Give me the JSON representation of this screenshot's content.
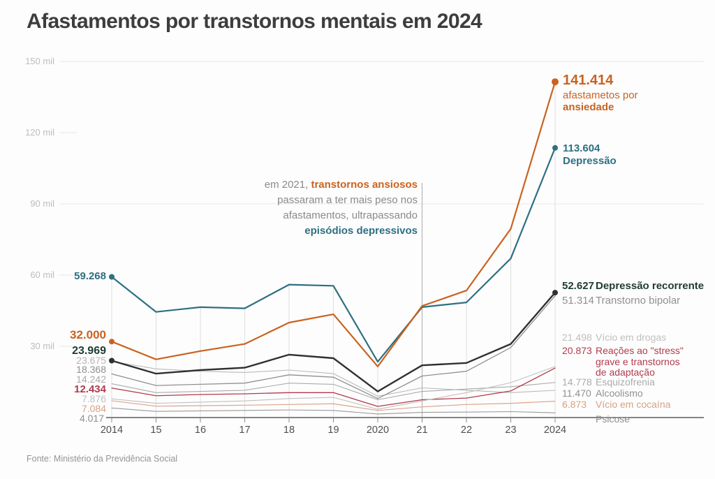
{
  "title": "Afastamentos por transtornos mentais em 2024",
  "source": "Fonte: Ministério da Previdência Social",
  "annotation": {
    "line1_prefix": "em 2021, ",
    "line1_highlight": "transtornos ansiosos",
    "line2": "passaram a ter mais peso nos",
    "line3": "afastamentos, ultrapassando",
    "line4_highlight": "episódios depressivos"
  },
  "colors": {
    "orange": "#ca6220",
    "teal": "#2e6f82",
    "dark": "#1e3b34",
    "red": "#b23a4c",
    "salmon": "#d9a183",
    "title_gray": "#3d3d3d"
  },
  "chart_data": {
    "type": "line",
    "x": [
      2014,
      2015,
      2016,
      2017,
      2018,
      2019,
      2020,
      2021,
      2022,
      2023,
      2024
    ],
    "x_tick_labels": [
      "2014",
      "15",
      "16",
      "17",
      "18",
      "19",
      "2020",
      "21",
      "22",
      "23",
      "2024"
    ],
    "y_ticks": [
      {
        "label": "150 mil",
        "value": 150000
      },
      {
        "label": "120 mil",
        "value": 120000
      },
      {
        "label": "90 mil",
        "value": 90000
      },
      {
        "label": "60 mil",
        "value": 60000
      },
      {
        "label": "30 mil",
        "value": 30000
      },
      {
        "label": "0",
        "value": 0
      }
    ],
    "ylim": [
      0,
      150000
    ],
    "grid": "partial-horizontal-plus-year-droplines",
    "legend_position": "direct-labels-left-and-right",
    "series": [
      {
        "id": "ansiedade",
        "name": "Ansiedade",
        "color": "#ca6220",
        "line_width": 2.2,
        "dots": "both",
        "start_label": "32.000",
        "end_label": "141.414",
        "label_lines": [
          "afastametos por",
          "ansiedade"
        ],
        "values": [
          32000,
          24500,
          28000,
          31000,
          40000,
          43500,
          21500,
          47000,
          53500,
          79500,
          141414
        ]
      },
      {
        "id": "depressao",
        "name": "Depressão",
        "color": "#2e6f82",
        "line_width": 2.2,
        "dots": "both",
        "start_label": "59.268",
        "end_label": "113.604",
        "label_lines": [
          "Depressão"
        ],
        "values": [
          59268,
          44500,
          46500,
          46000,
          56000,
          55500,
          23500,
          46500,
          48500,
          67000,
          113604
        ]
      },
      {
        "id": "depressao_recorrente",
        "name": "Depressão recorrente",
        "color": "#2d3134",
        "line_width": 2.4,
        "dots": "both",
        "start_label": "23.969",
        "end_label": "52.627",
        "label_lines": [
          "Depressão recorrente"
        ],
        "values": [
          23969,
          18500,
          20000,
          21000,
          26500,
          25000,
          11000,
          22000,
          23000,
          31000,
          52627
        ]
      },
      {
        "id": "transtorno_bipolar",
        "name": "Transtorno bipolar",
        "color": "#909090",
        "line_width": 1.3,
        "dots": "none",
        "start_label": "18.368",
        "end_label": "51.314",
        "label_lines": [
          "Transtorno bipolar"
        ],
        "values": [
          18368,
          13500,
          14000,
          14500,
          18000,
          17000,
          8000,
          17500,
          19500,
          29500,
          51314
        ]
      },
      {
        "id": "vicio_drogas",
        "name": "Vício em drogas",
        "color": "#c0c0c0",
        "line_width": 1.1,
        "dots": "none",
        "start_label": "7.876",
        "end_label": "21.498",
        "label_lines": [
          "Vício em drogas"
        ],
        "values": [
          7876,
          6000,
          6500,
          7000,
          8000,
          8500,
          3500,
          7000,
          10500,
          14700,
          21498
        ]
      },
      {
        "id": "reacoes_stress",
        "name": "Reações ao \"stress\" grave e transtornos de adaptação",
        "color": "#b23a4c",
        "line_width": 1.3,
        "dots": "none",
        "start_label": "12.434",
        "end_label": "20.873",
        "label_lines": [
          "Reações ao \"stress\"",
          "grave e transtornos",
          "de adaptação"
        ],
        "values": [
          12434,
          9200,
          9700,
          10000,
          10500,
          10500,
          4700,
          7500,
          8200,
          11200,
          20873
        ]
      },
      {
        "id": "esquizofrenia",
        "name": "Esquizofrenia",
        "color": "#ababab",
        "line_width": 1.1,
        "dots": "none",
        "start_label": "14.242",
        "end_label": "14.778",
        "label_lines": [
          "Esquizofrenia"
        ],
        "values": [
          14242,
          10500,
          11000,
          11500,
          14500,
          14000,
          7500,
          11000,
          12000,
          13000,
          14778
        ]
      },
      {
        "id": "alcoolismo",
        "name": "Alcoolismo",
        "color": "#bababa",
        "line_width": 1.1,
        "dots": "none",
        "start_label": "23.675",
        "end_label": "11.470",
        "label_lines": [
          "Alcoolismo"
        ],
        "values": [
          23675,
          20500,
          19500,
          19000,
          20000,
          18500,
          9000,
          12500,
          11500,
          10500,
          11470
        ]
      },
      {
        "id": "vicio_cocaina",
        "name": "Vício em cocaína",
        "color": "#dca488",
        "line_width": 1.2,
        "dots": "none",
        "start_label": "7.084",
        "end_label": "6.873",
        "label_lines": [
          "Vício em cocaína"
        ],
        "values": [
          7084,
          4800,
          5000,
          5200,
          5500,
          5800,
          3000,
          4500,
          5500,
          6000,
          6873
        ]
      },
      {
        "id": "psicose",
        "name": "Psicose",
        "color": "#9a9a9a",
        "line_width": 1.1,
        "dots": "none",
        "start_label": "4.017",
        "end_label": "",
        "label_lines": [
          "Psicose"
        ],
        "values": [
          4017,
          2600,
          2800,
          3000,
          3200,
          3000,
          1500,
          2200,
          2300,
          2500,
          2000
        ]
      }
    ]
  }
}
